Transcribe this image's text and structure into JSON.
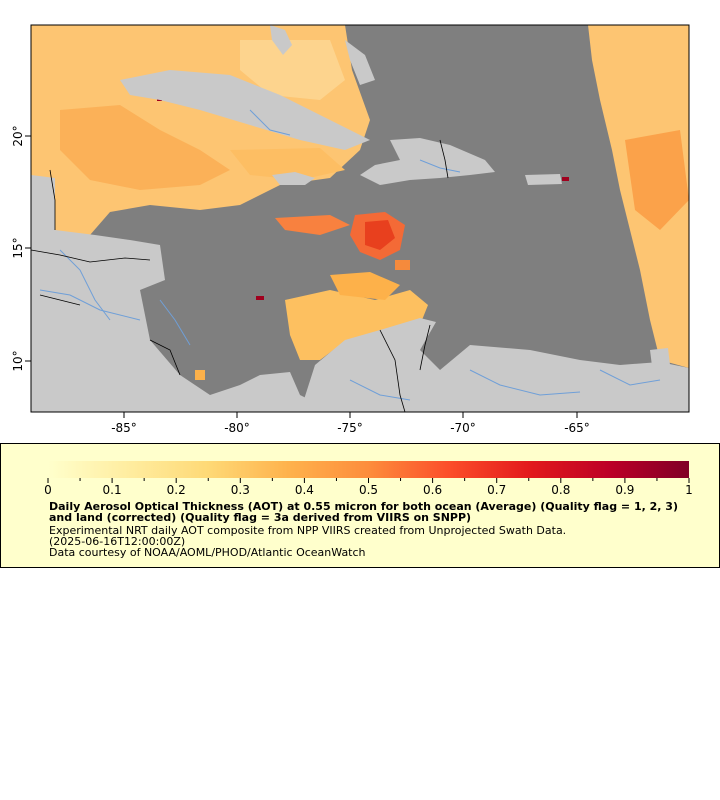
{
  "map": {
    "x_ticks": [
      "-85°",
      "-80°",
      "-75°",
      "-70°",
      "-65°"
    ],
    "y_ticks": [
      "20°",
      "15°",
      "10°"
    ],
    "colors": {
      "ocean_nodata": "#7f7f7f",
      "land": "#c9c9c9",
      "rivers": "#6f9fd8",
      "borders": "#000000",
      "frame": "#000000"
    }
  },
  "legend": {
    "colorbar_labels": [
      "0",
      "0.1",
      "0.2",
      "0.3",
      "0.4",
      "0.5",
      "0.6",
      "0.7",
      "0.8",
      "0.9",
      "1"
    ],
    "colorbar_colors": [
      "#ffffcc",
      "#ffeda0",
      "#fed976",
      "#feb24c",
      "#fd8d3c",
      "#fc4e2a",
      "#e31a1c",
      "#bd0026",
      "#800026"
    ],
    "title": "Daily Aerosol Optical Thickness (AOT) at 0.55 micron for both ocean (Average) (Quality flag = 1, 2, 3) and land (corrected) (Quality flag = 3a derived from VIIRS on SNPP)",
    "subtitle": "Experimental NRT daily AOT composite from NPP VIIRS created from Unprojected Swath Data.",
    "date": "(2025-06-16T12:00:00Z)",
    "credit": "Data courtesy of NOAA/AOML/PHOD/Atlantic OceanWatch"
  }
}
